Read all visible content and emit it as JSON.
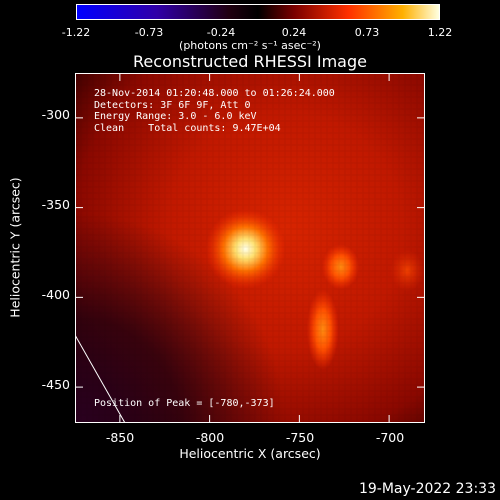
{
  "colorbar": {
    "ticks": [
      "-1.22",
      "-0.73",
      "-0.24",
      "0.24",
      "0.73",
      "1.22"
    ],
    "units": "(photons cm⁻² s⁻¹ asec⁻²)"
  },
  "chart_data": {
    "type": "heatmap",
    "title": "Reconstructed RHESSI Image",
    "xlabel": "Heliocentric X (arcsec)",
    "ylabel": "Heliocentric Y (arcsec)",
    "xlim": [
      -875,
      -680
    ],
    "ylim": [
      -470,
      -275
    ],
    "xticks": [
      "-850",
      "-800",
      "-750",
      "-700"
    ],
    "yticks": [
      "-300",
      "-350",
      "-400",
      "-450"
    ],
    "clim": [
      -1.22,
      1.22
    ],
    "colormap": "rhessi-3color",
    "peak": {
      "x": -780,
      "y": -373
    },
    "sources": [
      {
        "x": -780,
        "y": -373,
        "value": 1.22
      },
      {
        "x": -727,
        "y": -383,
        "value": 0.55
      },
      {
        "x": -737,
        "y": -418,
        "value": 0.5
      },
      {
        "x": -690,
        "y": -385,
        "value": 0.35
      }
    ],
    "info_lines": [
      "28-Nov-2014 01:20:48.000 to 01:26:24.000",
      "Detectors: 3F 6F 9F, Att 0",
      "Energy Range: 3.0 - 6.0 keV",
      "Clean    Total counts: 9.47E+04"
    ],
    "peak_label": "Position of Peak = [-780,-373]"
  },
  "timestamp": "19-May-2022 23:33"
}
